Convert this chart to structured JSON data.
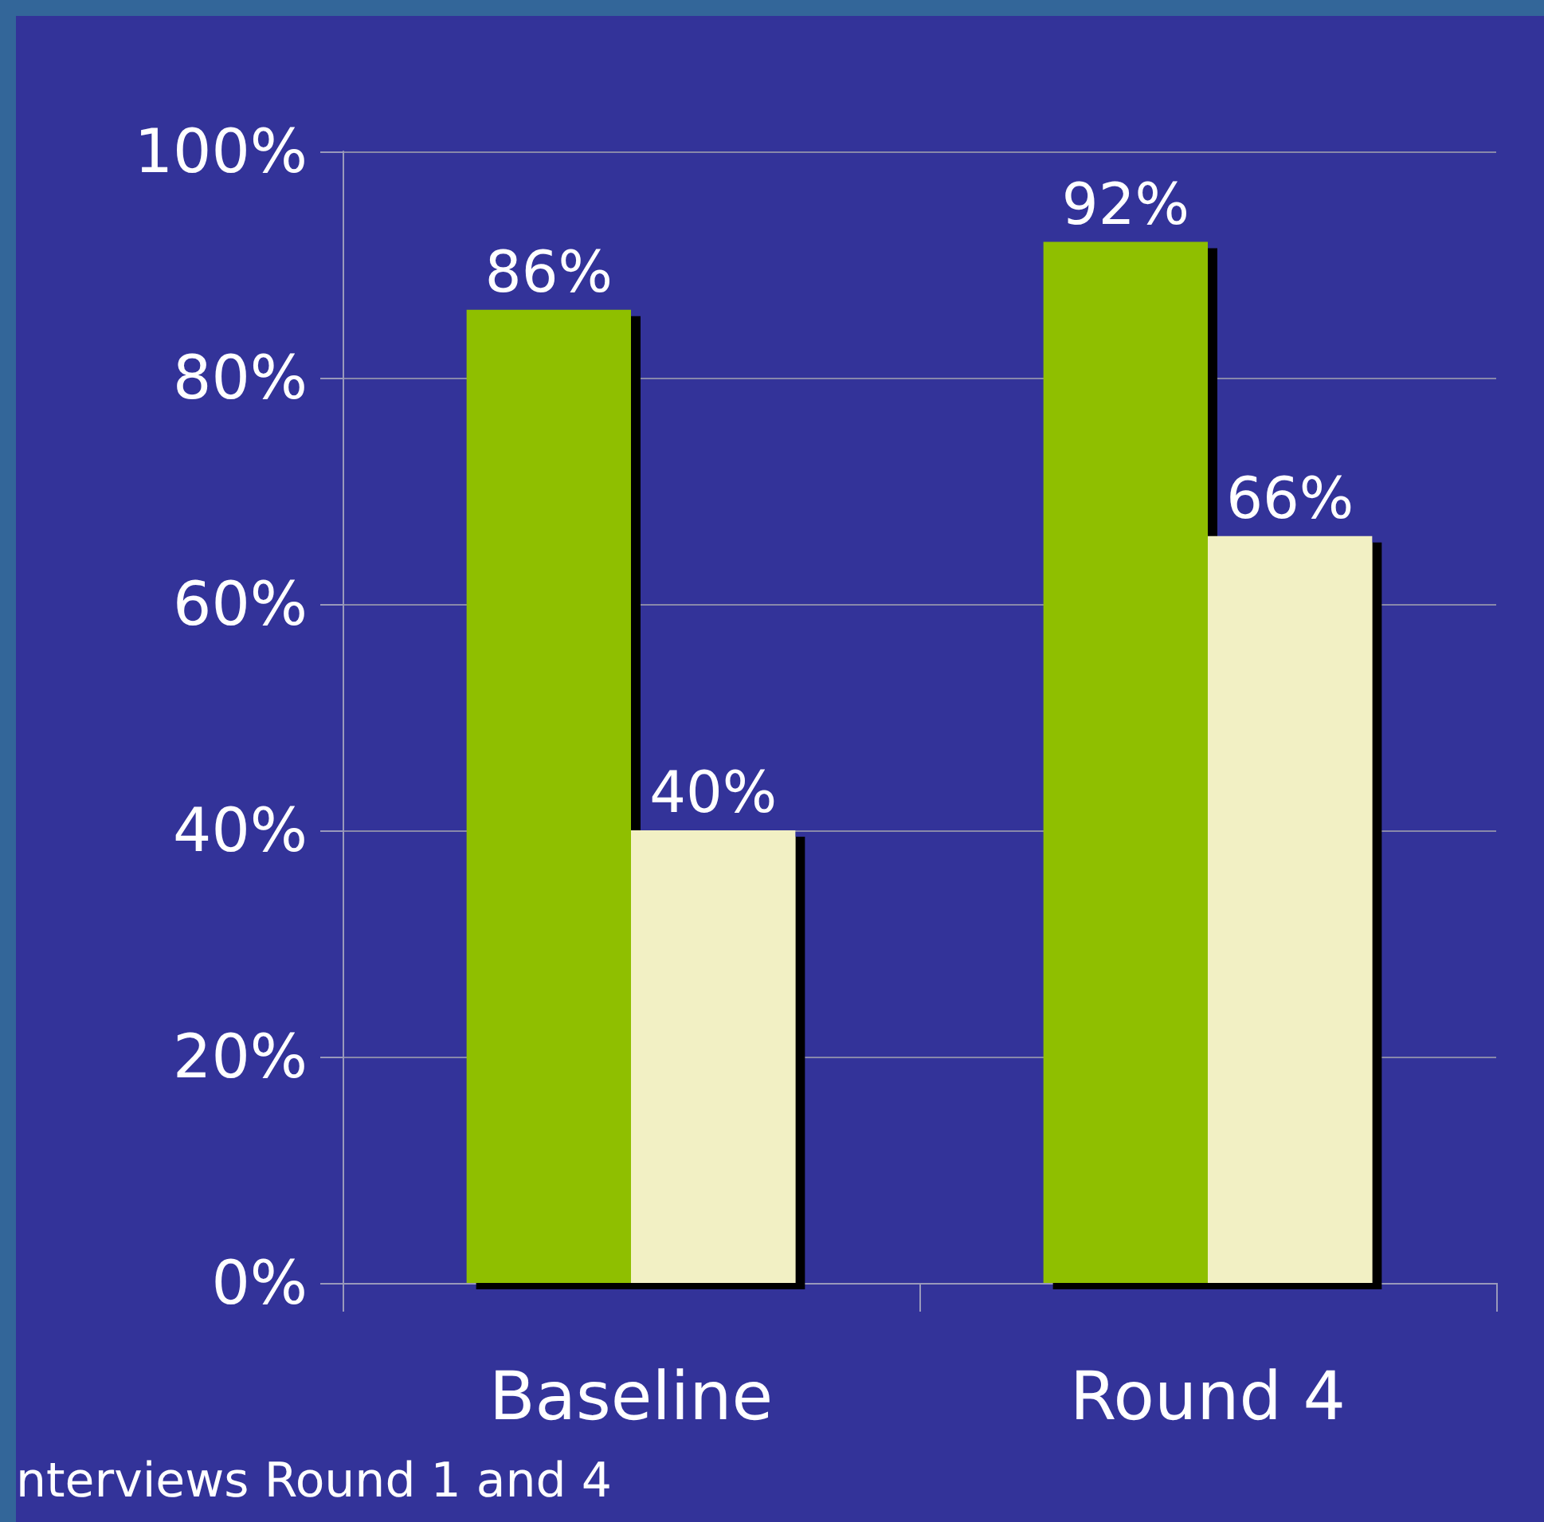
{
  "chart_data": {
    "type": "bar",
    "categories": [
      "Baseline",
      "Round 4"
    ],
    "series": [
      {
        "color": "#8fbf00",
        "values": [
          86,
          92
        ],
        "value_labels": [
          "86%",
          "92%"
        ]
      },
      {
        "color": "#f2f0c4",
        "values": [
          40,
          66
        ],
        "value_labels": [
          "40%",
          "66%"
        ]
      }
    ],
    "ylim": [
      0,
      100
    ],
    "yticks": [
      {
        "value": 0,
        "label": "0%"
      },
      {
        "value": 20,
        "label": "20%"
      },
      {
        "value": 40,
        "label": "40%"
      },
      {
        "value": 60,
        "label": "60%"
      },
      {
        "value": 80,
        "label": "80%"
      },
      {
        "value": 100,
        "label": "100%"
      }
    ],
    "grid": "y",
    "annotations": [
      "nterviews Round 1 and 4"
    ]
  }
}
